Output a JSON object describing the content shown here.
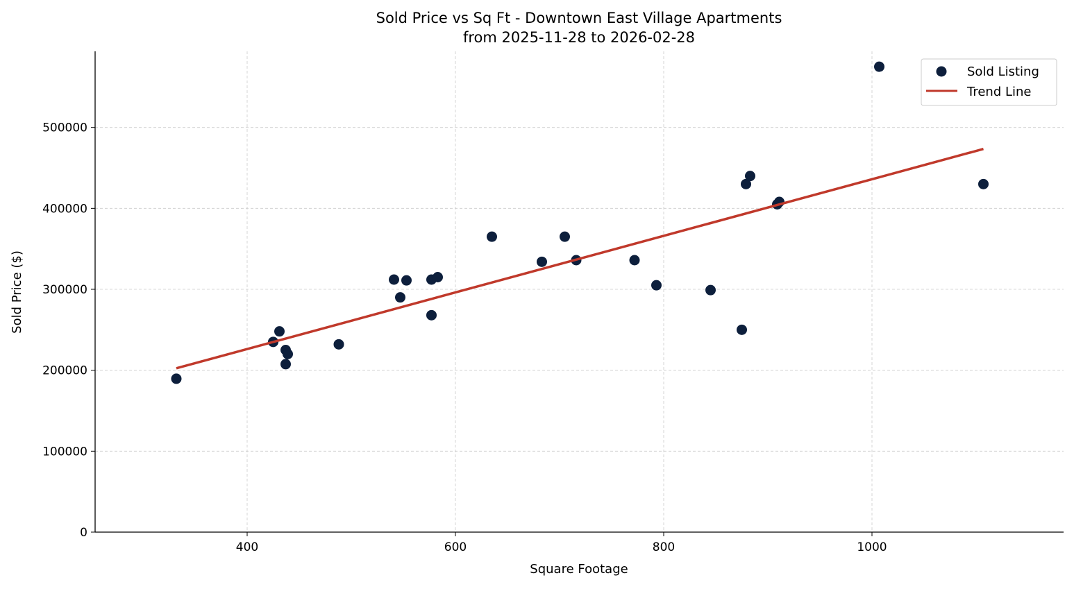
{
  "chart_data": {
    "type": "scatter",
    "title": "Sold Price vs Sq Ft - Downtown East Village Apartments",
    "subtitle": "from 2025-11-28 to 2026-02-28",
    "xlabel": "Square Footage",
    "ylabel": "Sold Price ($)",
    "xlim": [
      254,
      1184
    ],
    "ylim": [
      0,
      594000
    ],
    "xticks": [
      400,
      600,
      800,
      1000
    ],
    "yticks": [
      0,
      100000,
      200000,
      300000,
      400000,
      500000
    ],
    "grid": true,
    "legend_position": "top-right",
    "colors": {
      "points": "#0d1f3c",
      "trend": "#c0392b"
    },
    "series": [
      {
        "name": "Sold Listing",
        "type": "scatter",
        "points": [
          [
            332,
            189500
          ],
          [
            425,
            235000
          ],
          [
            431,
            248000
          ],
          [
            437,
            225000
          ],
          [
            439,
            220000
          ],
          [
            437,
            207500
          ],
          [
            488,
            232000
          ],
          [
            541,
            312000
          ],
          [
            553,
            311000
          ],
          [
            547,
            290000
          ],
          [
            577,
            312000
          ],
          [
            583,
            315000
          ],
          [
            577,
            268000
          ],
          [
            635,
            365000
          ],
          [
            683,
            334000
          ],
          [
            705,
            365000
          ],
          [
            716,
            336000
          ],
          [
            772,
            336000
          ],
          [
            793,
            305000
          ],
          [
            845,
            299000
          ],
          [
            875,
            250000
          ],
          [
            879,
            430000
          ],
          [
            883,
            440000
          ],
          [
            909,
            405000
          ],
          [
            911,
            408000
          ],
          [
            1007,
            575000
          ],
          [
            1107,
            430000
          ]
        ]
      },
      {
        "name": "Trend Line",
        "type": "line",
        "points": [
          [
            332,
            202400
          ],
          [
            1107,
            473400
          ]
        ]
      }
    ]
  }
}
